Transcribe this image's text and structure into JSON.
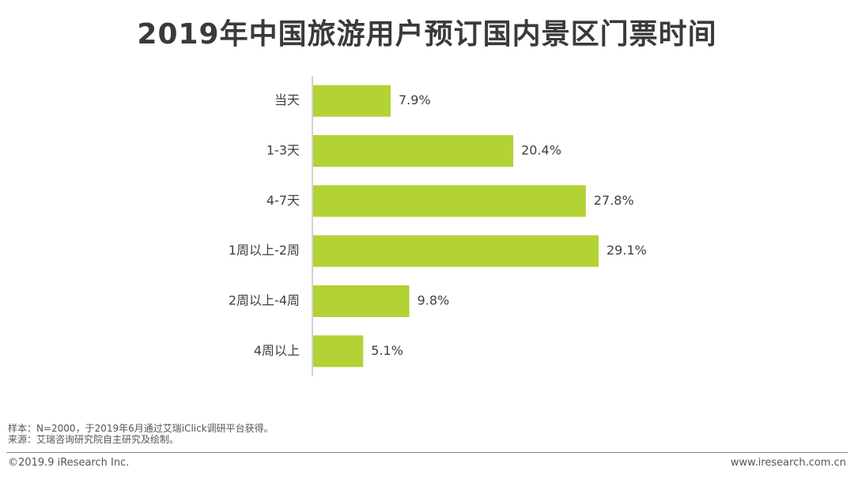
{
  "header": {
    "title": "2019年中国旅游用户预订国内景区门票时间"
  },
  "chart_data": {
    "type": "bar",
    "orientation": "horizontal",
    "title": "2019年中国旅游用户预订国内景区门票时间",
    "xlabel": "",
    "ylabel": "",
    "categories": [
      "当天",
      "1-3天",
      "4-7天",
      "1周以上-2周",
      "2周以上-4周",
      "4周以上"
    ],
    "values": [
      7.9,
      20.4,
      27.8,
      29.1,
      9.8,
      5.1
    ],
    "value_labels": [
      "7.9%",
      "20.4%",
      "27.8%",
      "29.1%",
      "9.8%",
      "5.1%"
    ],
    "unit": "%",
    "xlim": [
      0,
      30
    ],
    "bar_color": "#b2d235",
    "grid": false,
    "legend": "none"
  },
  "notes": {
    "sample": "样本：N=2000，于2019年6月通过艾瑞iClick调研平台获得。",
    "source": "来源：艾瑞咨询研究院自主研究及绘制。"
  },
  "footer": {
    "copyright": "©2019.9 iResearch Inc.",
    "website": "www.iresearch.com.cn"
  }
}
